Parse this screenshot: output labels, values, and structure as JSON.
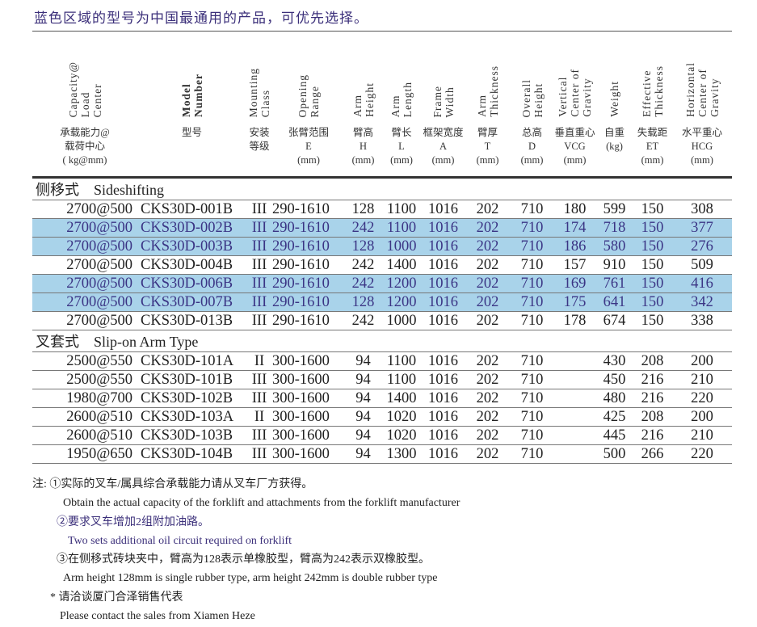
{
  "title": "蓝色区域的型号为中国最通用的产品，可优先选择。",
  "headers": [
    {
      "en": "Capacity@\nLoad\nCenter",
      "cn": "承载能力@\n载荷中心\n( kg@mm)"
    },
    {
      "en": "Model\nNumber",
      "cn": "型号"
    },
    {
      "en": "Mounting\nClass",
      "cn": "安装\n等级"
    },
    {
      "en": "Opening\nRange",
      "cn": "张臂范围\nE\n(mm)"
    },
    {
      "en": "Arm\nHeight",
      "cn": "臂高\nH\n(mm)"
    },
    {
      "en": "Arm\nLength",
      "cn": "臂长\nL\n(mm)"
    },
    {
      "en": "Frame\nWidth",
      "cn": "框架宽度\nA\n(mm)"
    },
    {
      "en": "Arm\nThickness",
      "cn": "臂厚\nT\n(mm)"
    },
    {
      "en": "Overall\nHeight",
      "cn": "总高\nD\n(mm)"
    },
    {
      "en": "Vertical\nCenter of\nGravity",
      "cn": "垂直重心\nVCG\n(mm)"
    },
    {
      "en": "Weight",
      "cn": "自重\n(kg)"
    },
    {
      "en": "Effective\nThickness",
      "cn": "失载距\nET\n(mm)"
    },
    {
      "en": "Horizontal\nCenter of\nGravity",
      "cn": "水平重心\nHCG\n(mm)"
    }
  ],
  "sections": [
    {
      "label": "侧移式    Sideshifting",
      "rows": [
        {
          "highlight": false,
          "cells": [
            "2700@500",
            "CKS30D-001B",
            "III",
            "290-1610",
            "128",
            "1100",
            "1016",
            "202",
            "710",
            "180",
            "599",
            "150",
            "308"
          ]
        },
        {
          "highlight": true,
          "cells": [
            "2700@500",
            "CKS30D-002B",
            "III",
            "290-1610",
            "242",
            "1100",
            "1016",
            "202",
            "710",
            "174",
            "718",
            "150",
            "377"
          ]
        },
        {
          "highlight": true,
          "cells": [
            "2700@500",
            "CKS30D-003B",
            "III",
            "290-1610",
            "128",
            "1000",
            "1016",
            "202",
            "710",
            "186",
            "580",
            "150",
            "276"
          ]
        },
        {
          "highlight": false,
          "cells": [
            "2700@500",
            "CKS30D-004B",
            "III",
            "290-1610",
            "242",
            "1400",
            "1016",
            "202",
            "710",
            "157",
            "910",
            "150",
            "509"
          ]
        },
        {
          "highlight": true,
          "cells": [
            "2700@500",
            "CKS30D-006B",
            "III",
            "290-1610",
            "242",
            "1200",
            "1016",
            "202",
            "710",
            "169",
            "761",
            "150",
            "416"
          ]
        },
        {
          "highlight": true,
          "cells": [
            "2700@500",
            "CKS30D-007B",
            "III",
            "290-1610",
            "128",
            "1200",
            "1016",
            "202",
            "710",
            "175",
            "641",
            "150",
            "342"
          ]
        },
        {
          "highlight": false,
          "cells": [
            "2700@500",
            "CKS30D-013B",
            "III",
            "290-1610",
            "242",
            "1000",
            "1016",
            "202",
            "710",
            "178",
            "674",
            "150",
            "338"
          ]
        }
      ]
    },
    {
      "label": "叉套式    Slip-on Arm Type",
      "rows": [
        {
          "highlight": false,
          "cells": [
            "2500@550",
            "CKS30D-101A",
            "II",
            "300-1600",
            "94",
            "1100",
            "1016",
            "202",
            "710",
            "",
            "430",
            "208",
            "200"
          ]
        },
        {
          "highlight": false,
          "cells": [
            "2500@550",
            "CKS30D-101B",
            "III",
            "300-1600",
            "94",
            "1100",
            "1016",
            "202",
            "710",
            "",
            "450",
            "216",
            "210"
          ]
        },
        {
          "highlight": false,
          "cells": [
            "1980@700",
            "CKS30D-102B",
            "III",
            "300-1600",
            "94",
            "1400",
            "1016",
            "202",
            "710",
            "",
            "480",
            "216",
            "220"
          ]
        },
        {
          "highlight": false,
          "cells": [
            "2600@510",
            "CKS30D-103A",
            "II",
            "300-1600",
            "94",
            "1020",
            "1016",
            "202",
            "710",
            "",
            "425",
            "208",
            "200"
          ]
        },
        {
          "highlight": false,
          "cells": [
            "2600@510",
            "CKS30D-103B",
            "III",
            "300-1600",
            "94",
            "1020",
            "1016",
            "202",
            "710",
            "",
            "445",
            "216",
            "210"
          ]
        },
        {
          "highlight": false,
          "cells": [
            "1950@650",
            "CKS30D-104B",
            "III",
            "300-1600",
            "94",
            "1300",
            "1016",
            "202",
            "710",
            "",
            "500",
            "266",
            "220"
          ]
        }
      ]
    }
  ],
  "notes": {
    "n1_cn": "注: ①实际的叉车/属具综合承载能力请从叉车厂方获得。",
    "n1_en": "Obtain the actual capacity of the forklift and attachments from the forklift manufacturer",
    "n2_cn": "②要求叉车增加2组附加油路。",
    "n2_en": "Two sets additional oil circuit required on forklift",
    "n3_cn": "③在侧移式砖块夹中，臂高为128表示单橡胶型，臂高为242表示双橡胶型。",
    "n3_en": "Arm height 128mm is single rubber type, arm height 242mm is double rubber type",
    "n4_cn": "* 请洽谈厦门合泽销售代表",
    "n4_en": "Please contact the sales from Xiamen Heze"
  },
  "colors": {
    "highlight_row": "#a9d3ea",
    "highlight_text": "#3b3585",
    "title": "#3b2f7a"
  }
}
